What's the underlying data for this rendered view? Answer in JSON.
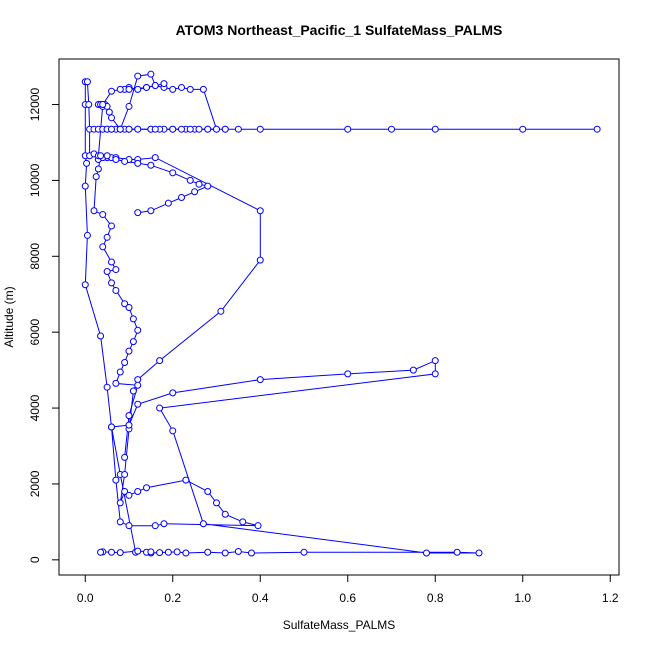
{
  "chart_data": {
    "type": "line",
    "title": "ATOM3 Northeast_Pacific_1 SulfateMass_PALMS",
    "xlabel": "SulfateMass_PALMS",
    "ylabel": "Altitude (m)",
    "xlim": [
      -0.06,
      1.22
    ],
    "ylim": [
      -400,
      13200
    ],
    "xticks": [
      0,
      0.2,
      0.4,
      0.6,
      0.8,
      1.0,
      1.2
    ],
    "xtick_labels": [
      "0.0",
      "0.2",
      "0.4",
      "0.6",
      "0.8",
      "1.0",
      "1.2"
    ],
    "yticks": [
      0,
      2000,
      4000,
      6000,
      8000,
      10000,
      12000
    ],
    "ytick_labels": [
      "0",
      "2000",
      "4000",
      "6000",
      "8000",
      "10000",
      "12000"
    ],
    "grid": false,
    "color": "#0000ff",
    "marker": "open-circle",
    "series": [
      {
        "x": [
          0.115,
          0.08,
          0.06,
          0.05,
          0.035,
          0.0,
          0.005,
          0.0,
          0.003,
          0.0,
          0.0,
          0.0,
          0.005,
          0.008,
          0.01,
          0.01,
          0.02,
          0.03,
          0.05,
          0.04,
          0.06,
          0.07,
          0.1,
          0.12,
          0.16,
          0.4,
          0.4,
          0.31,
          0.17,
          0.12,
          0.11,
          0.1,
          0.09,
          0.08,
          0.09,
          0.1,
          0.12,
          0.14,
          0.23,
          0.28,
          0.3,
          0.32,
          0.36,
          0.395,
          0.18,
          0.16,
          0.1,
          0.08,
          0.07,
          0.06,
          0.1,
          0.12,
          0.2,
          0.4,
          0.6,
          0.75,
          0.8,
          0.8,
          0.17,
          0.2,
          0.27,
          0.78,
          0.9,
          0.85,
          0.5,
          0.38,
          0.35,
          0.32,
          0.28,
          0.23,
          0.21,
          0.19,
          0.17,
          0.15,
          0.14,
          0.15,
          0.12,
          0.08,
          0.06,
          0.04,
          0.035
        ],
        "y": [
          200,
          2250,
          3500,
          4550,
          5900,
          7250,
          8550,
          9850,
          10450,
          10650,
          12000,
          12600,
          12600,
          12000,
          11350,
          10650,
          10700,
          10550,
          10600,
          10600,
          10600,
          10600,
          10550,
          10550,
          10600,
          9200,
          7900,
          6550,
          5250,
          4750,
          4450,
          3450,
          2250,
          1500,
          1800,
          1700,
          1800,
          1900,
          2100,
          1800,
          1500,
          1200,
          1000,
          900,
          950,
          900,
          900,
          1000,
          2100,
          3500,
          3550,
          4100,
          4400,
          4750,
          4900,
          5000,
          5250,
          4900,
          4000,
          3400,
          950,
          180,
          180,
          200,
          200,
          180,
          220,
          180,
          200,
          180,
          210,
          200,
          190,
          180,
          200,
          210,
          230,
          190,
          200,
          210,
          200
        ]
      },
      {
        "x": [
          0.02,
          0.03,
          0.04,
          0.05,
          0.06,
          0.08,
          0.1,
          0.12,
          0.15,
          0.18,
          0.2,
          0.23,
          0.25,
          0.28,
          0.3,
          0.27,
          0.24,
          0.22,
          0.2,
          0.18,
          0.16,
          0.14,
          0.12,
          0.1,
          0.09
        ],
        "y": [
          11350,
          11350,
          11350,
          11350,
          11350,
          11350,
          11350,
          11350,
          11350,
          11350,
          11350,
          11350,
          11350,
          11350,
          11350,
          12400,
          12400,
          12450,
          12400,
          12450,
          12500,
          12450,
          12400,
          12450,
          12400
        ]
      },
      {
        "x": [
          0.05,
          0.07,
          0.09,
          0.12,
          0.15,
          0.17,
          0.2,
          0.22,
          0.24,
          0.26,
          0.28,
          0.3,
          0.32,
          0.35,
          0.4,
          0.6,
          0.8,
          1.0,
          1.17,
          0.7,
          0.32,
          0.16,
          0.1,
          0.08,
          0.06
        ],
        "y": [
          11350,
          11350,
          11350,
          11350,
          11350,
          11350,
          11350,
          11350,
          11350,
          11350,
          11350,
          11350,
          11350,
          11350,
          11350,
          11350,
          11350,
          11350,
          11350,
          11350,
          11350,
          11350,
          11350,
          11350,
          11350
        ]
      },
      {
        "x": [
          0.03,
          0.035,
          0.04,
          0.045,
          0.05,
          0.055,
          0.06,
          0.08,
          0.1,
          0.12,
          0.15,
          0.16,
          0.18,
          0.14,
          0.1,
          0.08,
          0.06,
          0.04,
          0.03,
          0.05,
          0.07,
          0.09,
          0.12,
          0.15,
          0.2,
          0.24,
          0.26,
          0.28,
          0.25,
          0.22,
          0.19,
          0.15,
          0.12
        ],
        "y": [
          12000,
          12000,
          11950,
          12000,
          11950,
          11800,
          11650,
          11350,
          11950,
          12750,
          12800,
          12500,
          12550,
          12450,
          12400,
          12400,
          12350,
          12000,
          10650,
          10650,
          10550,
          10500,
          10450,
          10400,
          10200,
          10000,
          9900,
          9850,
          9700,
          9550,
          9400,
          9200,
          9150
        ]
      },
      {
        "x": [
          0.035,
          0.03,
          0.025,
          0.02,
          0.04,
          0.06,
          0.05,
          0.04,
          0.06,
          0.07,
          0.05,
          0.06,
          0.07,
          0.09,
          0.1,
          0.11,
          0.12,
          0.11,
          0.1,
          0.09,
          0.08,
          0.07,
          0.12,
          0.1,
          0.09
        ],
        "y": [
          10650,
          10300,
          10100,
          9200,
          9100,
          8800,
          8500,
          8250,
          7850,
          7650,
          7600,
          7300,
          7100,
          6750,
          6650,
          6350,
          6050,
          5750,
          5500,
          5200,
          4950,
          4650,
          4600,
          3800,
          2700
        ]
      }
    ]
  }
}
